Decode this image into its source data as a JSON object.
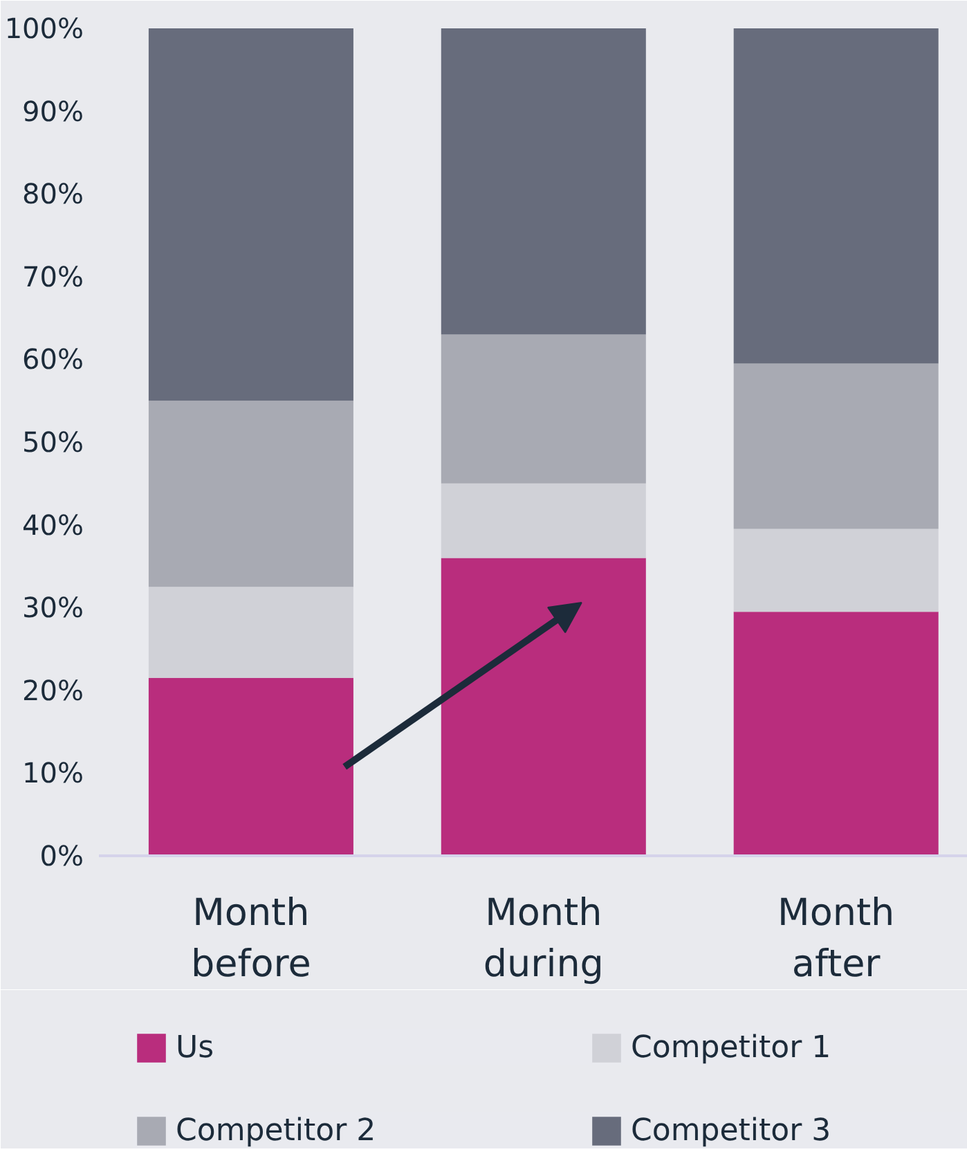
{
  "chart_data": {
    "type": "bar",
    "stacked": true,
    "categories": [
      "Month before",
      "Month during",
      "Month after"
    ],
    "series": [
      {
        "name": "Us",
        "color": "#b92d7d",
        "values": [
          21.5,
          36,
          29.5
        ]
      },
      {
        "name": "Competitor 1",
        "color": "#d0d1d7",
        "values": [
          11,
          9,
          10
        ]
      },
      {
        "name": "Competitor 2",
        "color": "#a8aab3",
        "values": [
          22.5,
          18,
          20
        ]
      },
      {
        "name": "Competitor 3",
        "color": "#676c7c",
        "values": [
          45,
          37,
          40.5
        ]
      }
    ],
    "ylim": [
      0,
      100
    ],
    "yticks": [
      {
        "value": 0,
        "label": "0%"
      },
      {
        "value": 10,
        "label": "10%"
      },
      {
        "value": 20,
        "label": "20%"
      },
      {
        "value": 30,
        "label": "30%"
      },
      {
        "value": 40,
        "label": "40%"
      },
      {
        "value": 50,
        "label": "50%"
      },
      {
        "value": 60,
        "label": "60%"
      },
      {
        "value": 70,
        "label": "70%"
      },
      {
        "value": 80,
        "label": "80%"
      },
      {
        "value": 90,
        "label": "90%"
      },
      {
        "value": 100,
        "label": "100%"
      }
    ],
    "grid": false,
    "legend": "bottom"
  }
}
